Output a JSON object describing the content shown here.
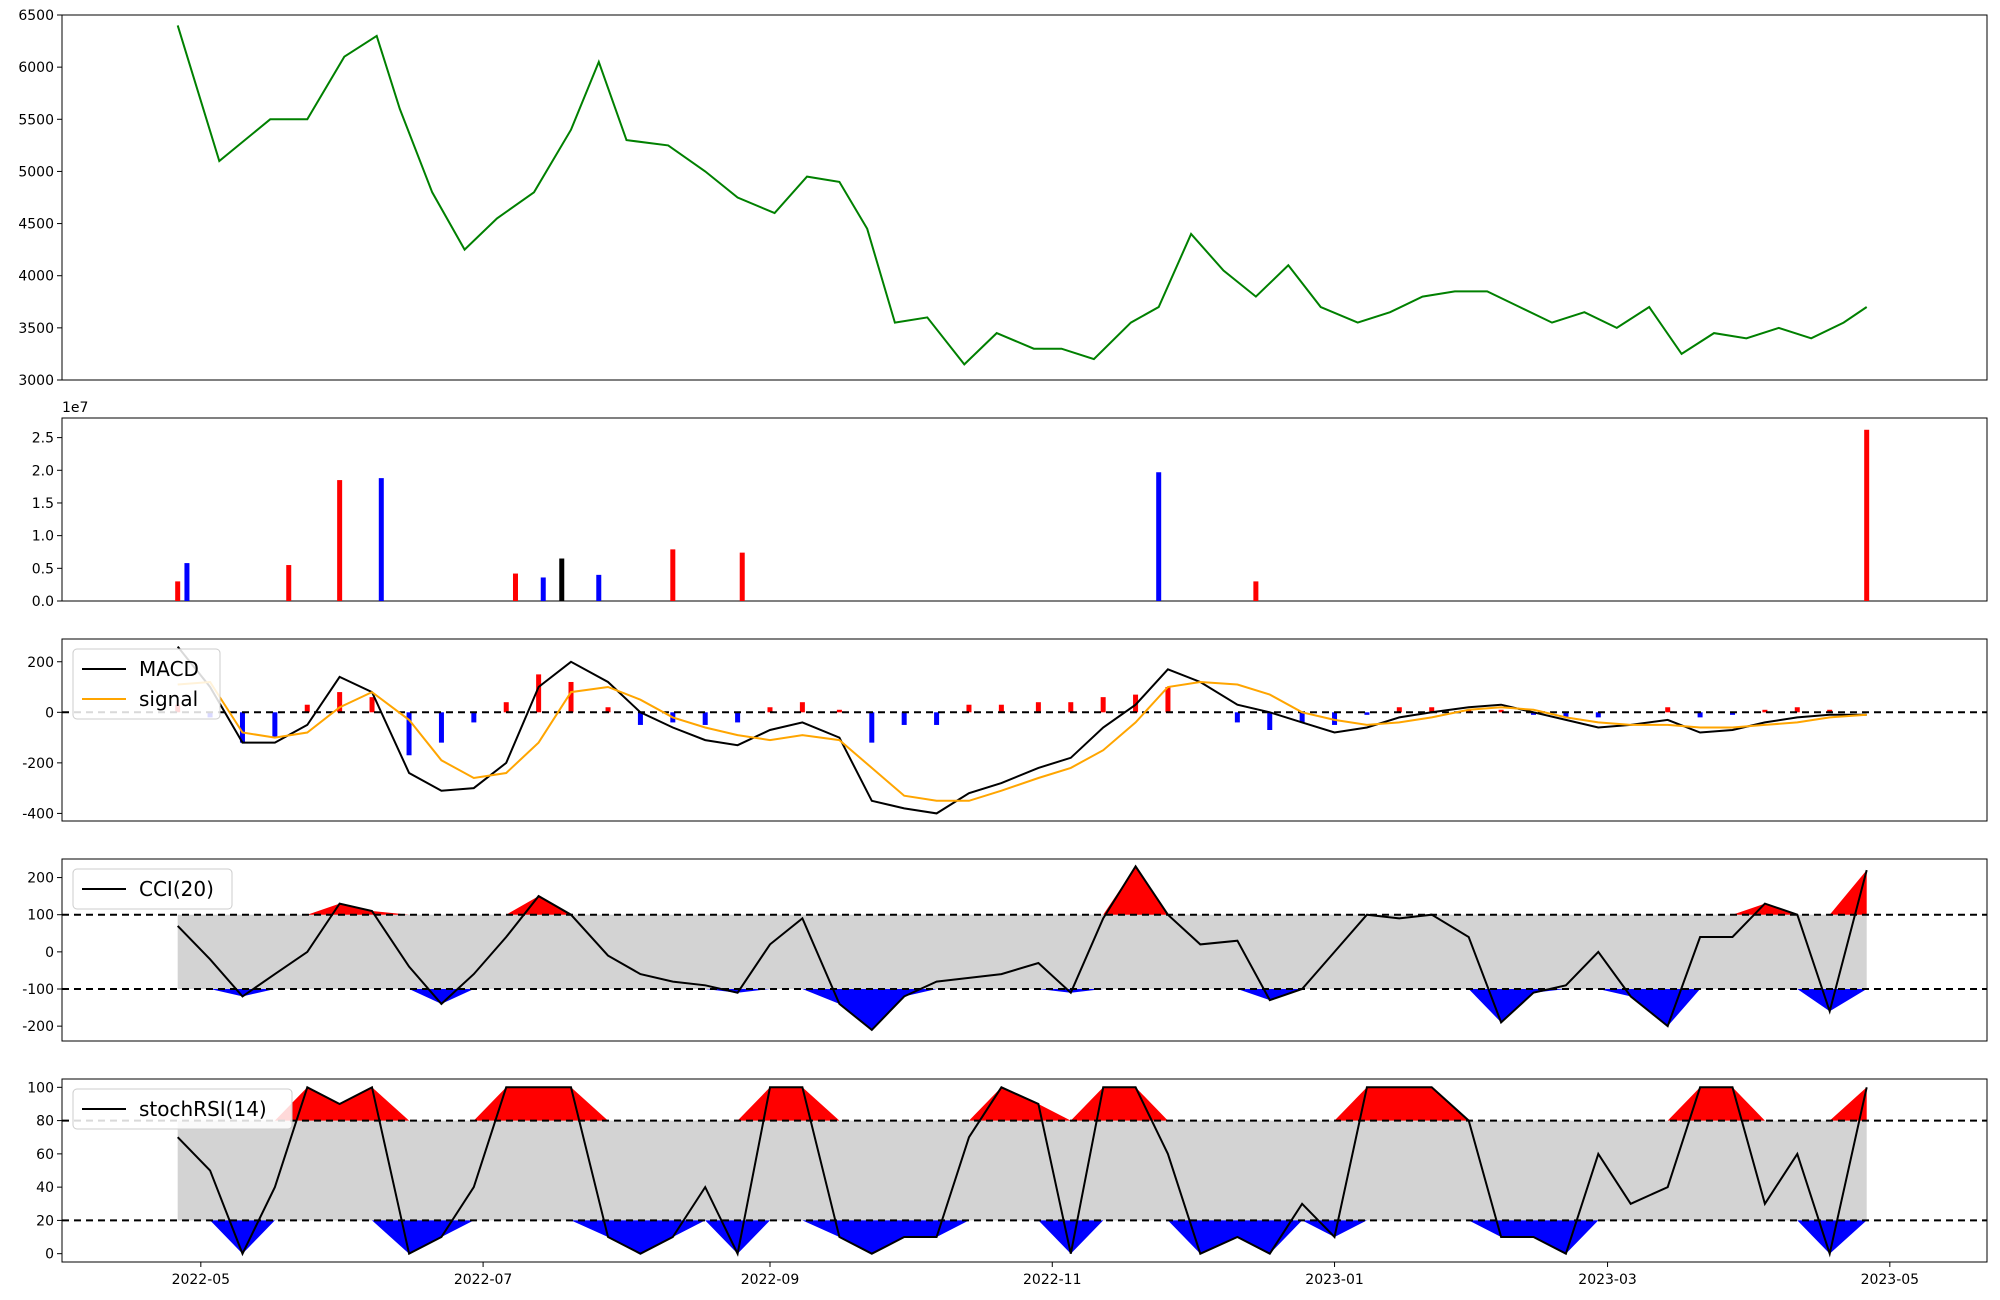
{
  "chart_data": [
    {
      "type": "line",
      "panel": "price",
      "color": "#008000",
      "ylim": [
        3000,
        6500
      ],
      "yticks": [
        "3000",
        "3500",
        "4000",
        "4500",
        "5000",
        "5500",
        "6000",
        "6500"
      ],
      "x": [
        "2022-04-26",
        "2022-05-05",
        "2022-05-16",
        "2022-05-24",
        "2022-06-01",
        "2022-06-08",
        "2022-06-13",
        "2022-06-20",
        "2022-06-27",
        "2022-07-04",
        "2022-07-12",
        "2022-07-20",
        "2022-07-26",
        "2022-08-01",
        "2022-08-10",
        "2022-08-18",
        "2022-08-25",
        "2022-09-02",
        "2022-09-09",
        "2022-09-16",
        "2022-09-22",
        "2022-09-28",
        "2022-10-05",
        "2022-10-13",
        "2022-10-20",
        "2022-10-28",
        "2022-11-03",
        "2022-11-10",
        "2022-11-18",
        "2022-11-24",
        "2022-12-01",
        "2022-12-08",
        "2022-12-15",
        "2022-12-22",
        "2022-12-29",
        "2023-01-06",
        "2023-01-13",
        "2023-01-20",
        "2023-01-27",
        "2023-02-03",
        "2023-02-10",
        "2023-02-17",
        "2023-02-24",
        "2023-03-03",
        "2023-03-10",
        "2023-03-17",
        "2023-03-24",
        "2023-03-31",
        "2023-04-07",
        "2023-04-14",
        "2023-04-21",
        "2023-04-26"
      ],
      "values": [
        6400,
        5100,
        5500,
        5500,
        6100,
        6300,
        5600,
        4800,
        4250,
        4550,
        4800,
        5400,
        6050,
        5300,
        5250,
        5000,
        4750,
        4600,
        4950,
        4900,
        4450,
        3550,
        3600,
        3150,
        3450,
        3300,
        3300,
        3200,
        3550,
        3700,
        4400,
        4050,
        3800,
        4100,
        3700,
        3550,
        3650,
        3800,
        3850,
        3850,
        3700,
        3550,
        3650,
        3500,
        3700,
        3250,
        3450,
        3400,
        3500,
        3400,
        3550,
        3700
      ]
    },
    {
      "type": "bar",
      "panel": "volume",
      "offset_text": "1e7",
      "ylim": [
        0,
        28000000
      ],
      "yticks": [
        "0.0",
        "0.5",
        "1.0",
        "1.5",
        "2.0",
        "2.5"
      ],
      "colors": {
        "up": "#ff0000",
        "down": "#0000ff",
        "flat": "#000000"
      },
      "x": [
        "2022-04-26",
        "2022-04-28",
        "2022-05-20",
        "2022-05-31",
        "2022-06-09",
        "2022-07-08",
        "2022-07-14",
        "2022-07-18",
        "2022-07-26",
        "2022-08-11",
        "2022-08-26",
        "2022-11-24",
        "2022-12-15",
        "2023-04-26"
      ],
      "values": [
        3000000,
        5800000,
        5500000,
        18500000,
        18800000,
        4200000,
        3600000,
        6500000,
        4000000,
        7900000,
        7400000,
        19700000,
        3000000,
        26200000
      ],
      "directions": [
        "up",
        "down",
        "up",
        "up",
        "down",
        "up",
        "down",
        "flat",
        "down",
        "up",
        "up",
        "down",
        "up",
        "up"
      ]
    },
    {
      "type": "line",
      "panel": "macd",
      "ylim": [
        -430,
        290
      ],
      "yticks": [
        "-400",
        "-200",
        "0",
        "200"
      ],
      "series": [
        {
          "name": "MACD",
          "color": "#000000",
          "values": [
            260,
            100,
            -120,
            -120,
            -50,
            140,
            80,
            -240,
            -310,
            -300,
            -200,
            100,
            200,
            120,
            0,
            -60,
            -110,
            -130,
            -70,
            -40,
            -100,
            -350,
            -380,
            -400,
            -320,
            -280,
            -220,
            -180,
            -60,
            30,
            170,
            120,
            30,
            0,
            -40,
            -80,
            -60,
            -20,
            0,
            20,
            30,
            0,
            -30,
            -60,
            -50,
            -30,
            -80,
            -70,
            -40,
            -20,
            -10,
            -10
          ]
        },
        {
          "name": "signal",
          "color": "#ffa500",
          "values": [
            110,
            120,
            -80,
            -100,
            -80,
            20,
            80,
            -30,
            -190,
            -260,
            -240,
            -120,
            80,
            100,
            50,
            -20,
            -60,
            -90,
            -110,
            -90,
            -110,
            -220,
            -330,
            -350,
            -350,
            -310,
            -260,
            -220,
            -150,
            -40,
            100,
            120,
            110,
            70,
            0,
            -30,
            -50,
            -40,
            -20,
            10,
            20,
            10,
            -20,
            -40,
            -50,
            -50,
            -60,
            -60,
            -50,
            -40,
            -20,
            -10
          ]
        }
      ],
      "histogram": {
        "colors": {
          "positive": "#ff0000",
          "negative": "#0000ff"
        },
        "values": [
          30,
          -20,
          -120,
          -100,
          30,
          80,
          60,
          -170,
          -120,
          -40,
          40,
          150,
          120,
          20,
          -50,
          -40,
          -50,
          -40,
          20,
          40,
          10,
          -120,
          -50,
          -50,
          30,
          30,
          40,
          40,
          60,
          70,
          100,
          0,
          -40,
          -70,
          -40,
          -50,
          -10,
          20,
          20,
          10,
          10,
          -10,
          -20,
          -20,
          0,
          20,
          -20,
          -10,
          10,
          20,
          10,
          0
        ]
      }
    },
    {
      "type": "area",
      "panel": "cci",
      "legend": [
        "CCI(20)"
      ],
      "legend_position": "upper-left",
      "ylim": [
        -240,
        250
      ],
      "yticks": [
        "-200",
        "-100",
        "0",
        "100",
        "200"
      ],
      "thresholds": [
        100,
        -100
      ],
      "fill_colors": {
        "band": "#d3d3d3",
        "above": "#ff0000",
        "below": "#0000ff"
      },
      "values": [
        70,
        -20,
        -120,
        -60,
        0,
        130,
        110,
        -40,
        -140,
        -60,
        40,
        150,
        100,
        -10,
        -60,
        -80,
        -90,
        -110,
        20,
        90,
        -140,
        -210,
        -120,
        -80,
        -70,
        -60,
        -30,
        -110,
        90,
        230,
        100,
        20,
        30,
        -130,
        -100,
        0,
        100,
        90,
        100,
        40,
        -190,
        -110,
        -90,
        0,
        -120,
        -200,
        40,
        40,
        130,
        100,
        -160,
        220
      ]
    },
    {
      "type": "area",
      "panel": "stochrsi",
      "legend": [
        "stochRSI(14)"
      ],
      "legend_position": "upper-left",
      "xticks": [
        "2022-05",
        "2022-07",
        "2022-09",
        "2022-11",
        "2023-01",
        "2023-03",
        "2023-05"
      ],
      "ylim": [
        -5,
        105
      ],
      "yticks": [
        "0",
        "20",
        "40",
        "60",
        "80",
        "100"
      ],
      "thresholds": [
        80,
        20
      ],
      "fill_colors": {
        "band": "#d3d3d3",
        "above": "#ff0000",
        "below": "#0000ff"
      },
      "values": [
        70,
        50,
        0,
        40,
        100,
        90,
        100,
        0,
        10,
        40,
        100,
        100,
        100,
        10,
        0,
        10,
        40,
        0,
        100,
        100,
        10,
        0,
        10,
        10,
        70,
        100,
        90,
        0,
        100,
        100,
        60,
        0,
        10,
        0,
        30,
        10,
        100,
        100,
        100,
        80,
        10,
        10,
        0,
        60,
        30,
        40,
        100,
        100,
        30,
        60,
        0,
        100
      ]
    }
  ]
}
